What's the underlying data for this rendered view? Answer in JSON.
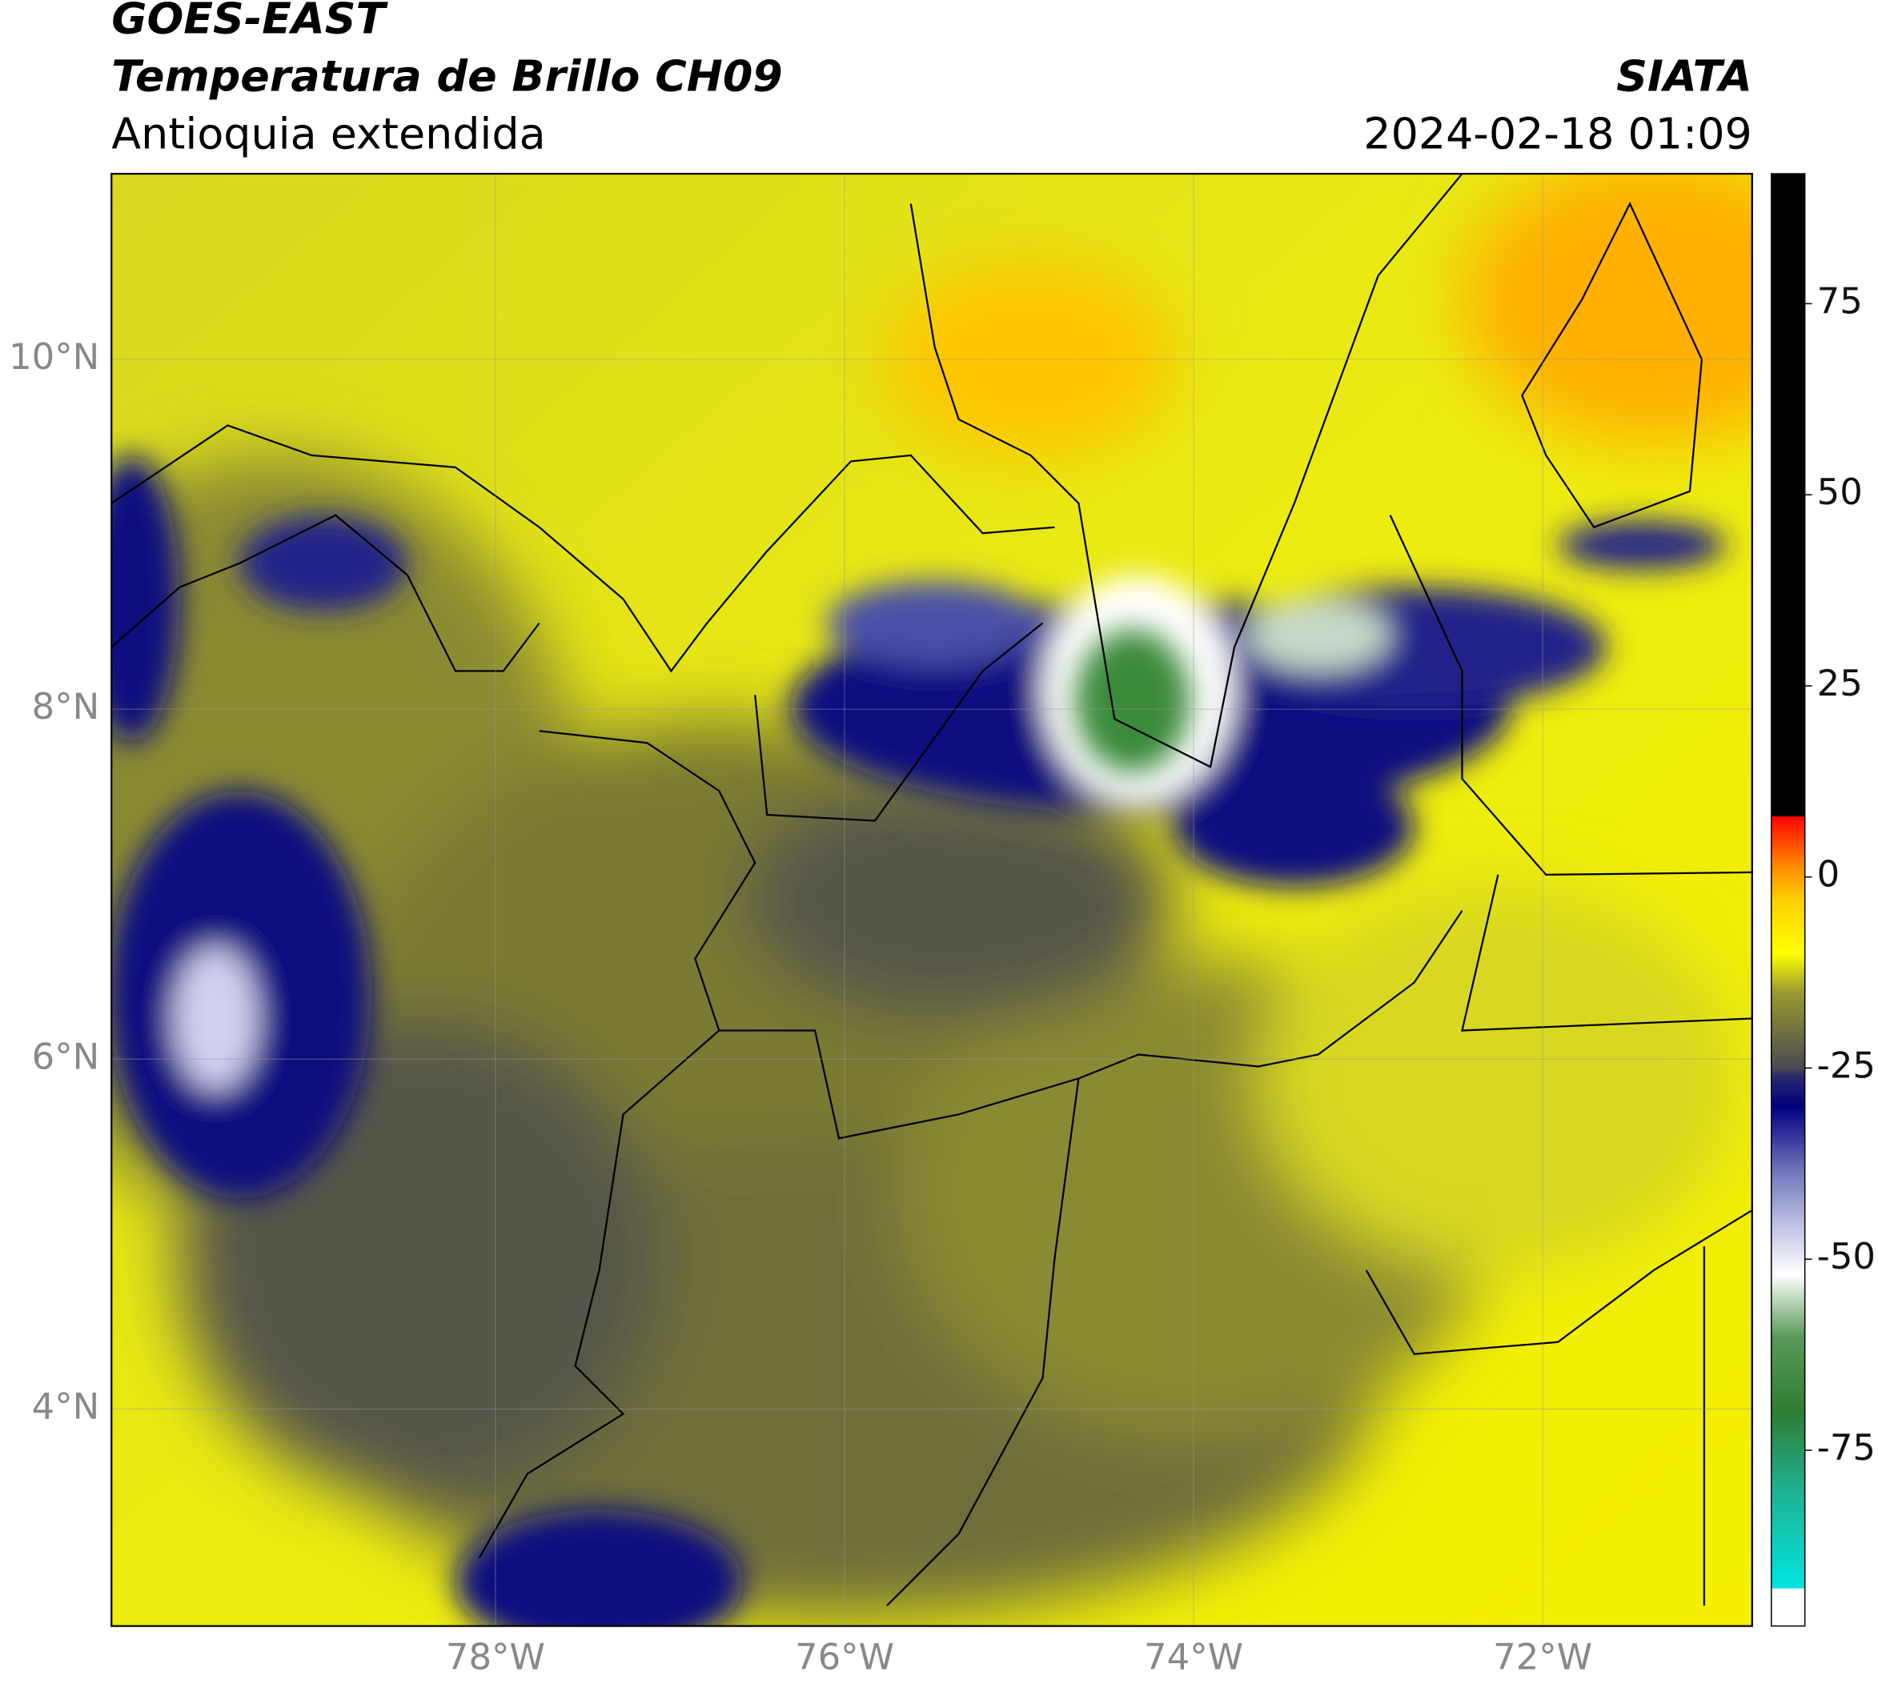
{
  "header": {
    "title": "GOES-EAST",
    "subtitle": "Temperatura de Brillo CH09",
    "region": "Antioquia extendida",
    "agency": "SIATA",
    "datetime": "2024-02-18 01:09"
  },
  "map": {
    "xlim": [
      -80.2,
      -70.8
    ],
    "ylim": [
      2.76,
      11.06
    ],
    "xticks": [
      {
        "value": -78,
        "label": "78°W"
      },
      {
        "value": -76,
        "label": "76°W"
      },
      {
        "value": -74,
        "label": "74°W"
      },
      {
        "value": -72,
        "label": "72°W"
      }
    ],
    "yticks": [
      {
        "value": 10,
        "label": "10°N"
      },
      {
        "value": 8,
        "label": "8°N"
      },
      {
        "value": 6,
        "label": "6°N"
      },
      {
        "value": 4,
        "label": "4°N"
      }
    ],
    "grid": true
  },
  "colorbar": {
    "lim": [
      -98,
      92
    ],
    "ticks": [
      75,
      50,
      25,
      0,
      -25,
      -50,
      -75
    ],
    "stops": [
      {
        "value": -98,
        "color": "#ffffff"
      },
      {
        "value": -93,
        "color": "#ffffff"
      },
      {
        "value": -93,
        "color": "#00e5e0"
      },
      {
        "value": -80,
        "color": "#20b090"
      },
      {
        "value": -70,
        "color": "#2e7d32"
      },
      {
        "value": -60,
        "color": "#5a9a5a"
      },
      {
        "value": -52,
        "color": "#ffffff"
      },
      {
        "value": -45,
        "color": "#b8bce0"
      },
      {
        "value": -38,
        "color": "#6a70b8"
      },
      {
        "value": -30,
        "color": "#000080"
      },
      {
        "value": -26,
        "color": "#2a2a6a"
      },
      {
        "value": -25,
        "color": "#4a4a50"
      },
      {
        "value": -15,
        "color": "#9a9a30"
      },
      {
        "value": -10,
        "color": "#ffff00"
      },
      {
        "value": -3,
        "color": "#ffd000"
      },
      {
        "value": 2,
        "color": "#ff8000"
      },
      {
        "value": 8,
        "color": "#ff0000"
      },
      {
        "value": 8,
        "color": "#000000"
      },
      {
        "value": 92,
        "color": "#000000"
      }
    ]
  }
}
